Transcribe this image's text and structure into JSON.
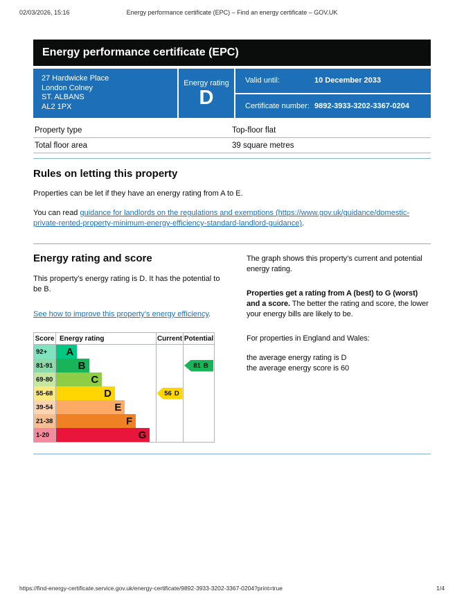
{
  "print_header": {
    "datetime": "02/03/2026, 15:16",
    "title": "Energy performance certificate (EPC) – Find an energy certificate – GOV.UK"
  },
  "banner": {
    "title": "Energy performance certificate (EPC)"
  },
  "summary_box": {
    "color": "#1d70b8",
    "address_lines": [
      "27 Hardwicke Place",
      "London Colney",
      "ST. ALBANS",
      "AL2 1PX"
    ],
    "rating_label": "Energy rating",
    "rating": "D",
    "valid_until_label": "Valid until:",
    "valid_until": "10 December 2033",
    "certificate_number_label": "Certificate number:",
    "certificate_number": "9892-3933-3202-3367-0204"
  },
  "property_facts": [
    {
      "label": "Property type",
      "value": "Top-floor flat"
    },
    {
      "label": "Total floor area",
      "value": "39 square metres"
    }
  ],
  "letting_rules": {
    "heading": "Rules on letting this property",
    "paragraph": "Properties can be let if they have an energy rating from A to E.",
    "link_prefix": "You can read ",
    "link_text": "guidance for landlords on the regulations and exemptions (https://www.gov.uk/guidance/domestic-private-rented-property-minimum-energy-efficiency-standard-landlord-guidance)",
    "link_suffix": "."
  },
  "rating_section": {
    "heading": "Energy rating and score",
    "paragraph": "This property’s energy rating is D. It has the potential to be B.",
    "link_text": "See how to improve this property’s energy efficiency",
    "link_suffix": ".",
    "right": {
      "p1": "The graph shows this property’s current and potential energy rating.",
      "p2_bold": "Properties get a rating from A (best) to G (worst) and a score.",
      "p2_rest": " The better the rating and score, the lower your energy bills are likely to be.",
      "p3": "For properties in England and Wales:",
      "p4_line1": "the average energy rating is D",
      "p4_line2": "the average energy score is 60"
    }
  },
  "chart_data": {
    "type": "epc-rating-graph",
    "headers": {
      "score": "Score",
      "rating": "Energy rating",
      "current": "Current",
      "potential": "Potential"
    },
    "bands": [
      {
        "score": "92+",
        "letter": "A",
        "color": "#00c781",
        "tint": "#80e3c0",
        "width_pct": 21
      },
      {
        "score": "81-91",
        "letter": "B",
        "color": "#19b459",
        "tint": "#8cd9ac",
        "width_pct": 33
      },
      {
        "score": "69-80",
        "letter": "C",
        "color": "#8dce46",
        "tint": "#c6e7a2",
        "width_pct": 46
      },
      {
        "score": "55-68",
        "letter": "D",
        "color": "#ffd500",
        "tint": "#ffea80",
        "width_pct": 59
      },
      {
        "score": "39-54",
        "letter": "E",
        "color": "#fcaa65",
        "tint": "#fdd4b2",
        "width_pct": 69
      },
      {
        "score": "21-38",
        "letter": "F",
        "color": "#ef8023",
        "tint": "#f7bf91",
        "width_pct": 80
      },
      {
        "score": "1-20",
        "letter": "G",
        "color": "#e9153b",
        "tint": "#f48a9d",
        "width_pct": 94
      }
    ],
    "current": {
      "score": "56",
      "letter": "D",
      "band_index": 3,
      "color": "#ffd500"
    },
    "potential": {
      "score": "81",
      "letter": "B",
      "band_index": 1,
      "color": "#19b459"
    }
  },
  "footer": {
    "url": "https://find-energy-certificate.service.gov.uk/energy-certificate/9892-3933-3202-3367-0204?print=true",
    "page": "1/4"
  }
}
